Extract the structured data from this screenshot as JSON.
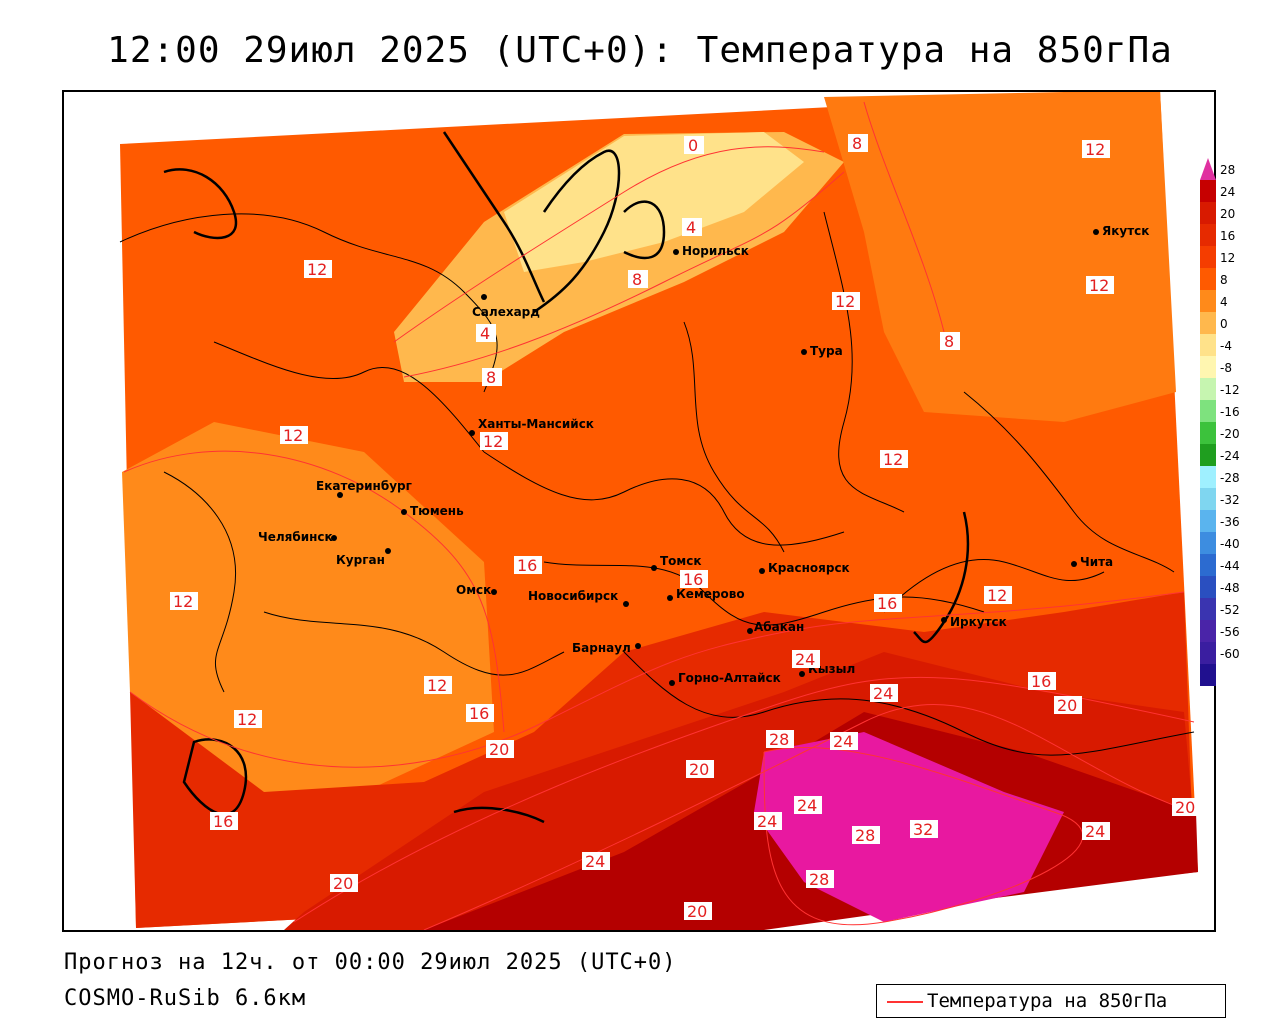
{
  "title": "12:00 29июл 2025 (UTC+0): Температура на 850гПа",
  "footer": {
    "forecast": "Прогноз на 12ч. от 00:00 29июл 2025 (UTC+0)",
    "model": "COSMO-RuSib 6.6км"
  },
  "key": {
    "label": "Температура на 850гПа",
    "line_color": "#ff3333"
  },
  "legend": {
    "ticks": [
      "28",
      "24",
      "20",
      "16",
      "12",
      "8",
      "4",
      "0",
      "-4",
      "-8",
      "-12",
      "-16",
      "-20",
      "-24",
      "-28",
      "-32",
      "-36",
      "-40",
      "-44",
      "-48",
      "-52",
      "-56",
      "-60"
    ],
    "colors": [
      "#c60000",
      "#d81a00",
      "#e62a00",
      "#f53d00",
      "#ff5a00",
      "#ff8a1a",
      "#ffb84d",
      "#ffe28a",
      "#fff6b0",
      "#c6f5b0",
      "#7ee27e",
      "#3cc23c",
      "#1f9e1f",
      "#9ff0ff",
      "#7fd6f0",
      "#5ab4ee",
      "#3d8de0",
      "#2c6bd0",
      "#2a4fc0",
      "#3a34b0",
      "#4a24a8",
      "#3a1ea0",
      "#20108f"
    ],
    "top_color": "#e030a0",
    "bottom_color": "#c030d0"
  },
  "cities": [
    {
      "name": "Норильск"
    },
    {
      "name": "Салехард"
    },
    {
      "name": "Якутск"
    },
    {
      "name": "Тура"
    },
    {
      "name": "Ханты-Мансийск"
    },
    {
      "name": "Екатеринбург"
    },
    {
      "name": "Тюмень"
    },
    {
      "name": "Челябинск"
    },
    {
      "name": "Курган"
    },
    {
      "name": "Омск"
    },
    {
      "name": "Новосибирск"
    },
    {
      "name": "Томск"
    },
    {
      "name": "Кемерово"
    },
    {
      "name": "Красноярск"
    },
    {
      "name": "Барнаул"
    },
    {
      "name": "Абакан"
    },
    {
      "name": "Горно-Алтайск"
    },
    {
      "name": "Кызыл"
    },
    {
      "name": "Иркутск"
    },
    {
      "name": "Чита"
    }
  ],
  "isotherm_labels": [
    "0",
    "4",
    "8",
    "12",
    "16",
    "20",
    "24",
    "28",
    "32"
  ]
}
